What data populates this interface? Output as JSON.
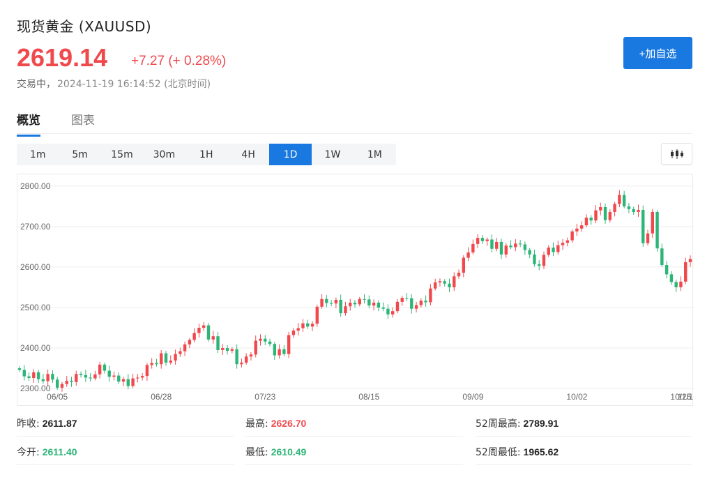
{
  "header": {
    "title": "现货黄金 (XAUUSD)",
    "price": "2619.14",
    "change": "+7.27 (+ 0.28%)",
    "status": "交易中，",
    "timestamp": "2024-11-19 16:14:52 (北京时间)",
    "add_button": "+加自选"
  },
  "tabs": [
    {
      "label": "概览",
      "active": true
    },
    {
      "label": "图表",
      "active": false
    }
  ],
  "periods": [
    {
      "label": "1m",
      "active": false
    },
    {
      "label": "5m",
      "active": false
    },
    {
      "label": "15m",
      "active": false
    },
    {
      "label": "30m",
      "active": false
    },
    {
      "label": "1H",
      "active": false
    },
    {
      "label": "4H",
      "active": false
    },
    {
      "label": "1D",
      "active": true
    },
    {
      "label": "1W",
      "active": false
    },
    {
      "label": "1M",
      "active": false
    }
  ],
  "chart_type_icon": "candlestick-icon",
  "colors": {
    "up": "#f0494d",
    "down": "#2db578",
    "accent": "#1a79e0"
  },
  "chart_data": {
    "type": "candlestick",
    "ylim": [
      2295,
      2810
    ],
    "y_ticks": [
      "2800.00",
      "2700.00",
      "2600.00",
      "2500.00",
      "2400.00",
      "2300.00"
    ],
    "y_tick_values": [
      2800,
      2700,
      2600,
      2500,
      2400,
      2300
    ],
    "x_ticks": [
      "06/05",
      "06/28",
      "07/23",
      "08/15",
      "09/09",
      "10/02",
      "10/25",
      "11/1"
    ],
    "x_tick_index": [
      8,
      30,
      52,
      74,
      96,
      118,
      140,
      161
    ],
    "closes": [
      2346,
      2330,
      2326,
      2340,
      2323,
      2318,
      2336,
      2322,
      2302,
      2311,
      2319,
      2316,
      2336,
      2333,
      2327,
      2325,
      2335,
      2359,
      2344,
      2329,
      2332,
      2317,
      2323,
      2306,
      2325,
      2327,
      2331,
      2358,
      2363,
      2360,
      2387,
      2364,
      2369,
      2385,
      2392,
      2409,
      2420,
      2437,
      2450,
      2456,
      2421,
      2429,
      2395,
      2400,
      2393,
      2397,
      2360,
      2364,
      2379,
      2384,
      2418,
      2423,
      2416,
      2410,
      2382,
      2397,
      2385,
      2432,
      2443,
      2449,
      2461,
      2453,
      2460,
      2502,
      2521,
      2511,
      2510,
      2519,
      2486,
      2503,
      2512,
      2508,
      2521,
      2520,
      2505,
      2512,
      2500,
      2497,
      2483,
      2491,
      2514,
      2524,
      2523,
      2497,
      2506,
      2517,
      2513,
      2547,
      2562,
      2565,
      2559,
      2550,
      2577,
      2586,
      2623,
      2636,
      2657,
      2672,
      2664,
      2668,
      2645,
      2662,
      2631,
      2653,
      2649,
      2658,
      2656,
      2642,
      2631,
      2607,
      2603,
      2630,
      2648,
      2637,
      2654,
      2660,
      2666,
      2688,
      2695,
      2703,
      2722,
      2715,
      2740,
      2748,
      2716,
      2736,
      2756,
      2778,
      2750,
      2743,
      2736,
      2741,
      2659,
      2683,
      2736,
      2646,
      2605,
      2582,
      2563,
      2550,
      2564,
      2612,
      2620
    ],
    "opens": [
      2350,
      2346,
      2330,
      2326,
      2340,
      2323,
      2318,
      2336,
      2322,
      2302,
      2311,
      2319,
      2316,
      2336,
      2333,
      2327,
      2325,
      2335,
      2359,
      2344,
      2329,
      2332,
      2317,
      2323,
      2306,
      2325,
      2327,
      2331,
      2358,
      2363,
      2360,
      2387,
      2364,
      2369,
      2385,
      2392,
      2409,
      2420,
      2437,
      2450,
      2456,
      2421,
      2429,
      2395,
      2400,
      2393,
      2397,
      2360,
      2364,
      2379,
      2384,
      2418,
      2423,
      2416,
      2410,
      2382,
      2397,
      2385,
      2432,
      2443,
      2449,
      2461,
      2453,
      2460,
      2502,
      2521,
      2511,
      2510,
      2519,
      2486,
      2503,
      2512,
      2508,
      2521,
      2520,
      2505,
      2512,
      2500,
      2497,
      2483,
      2491,
      2514,
      2524,
      2523,
      2497,
      2506,
      2517,
      2513,
      2547,
      2562,
      2565,
      2559,
      2550,
      2577,
      2586,
      2623,
      2636,
      2657,
      2672,
      2664,
      2668,
      2645,
      2662,
      2631,
      2653,
      2649,
      2658,
      2656,
      2642,
      2631,
      2607,
      2603,
      2630,
      2648,
      2637,
      2654,
      2660,
      2666,
      2688,
      2695,
      2703,
      2722,
      2715,
      2740,
      2748,
      2716,
      2736,
      2756,
      2778,
      2750,
      2743,
      2736,
      2741,
      2659,
      2683,
      2736,
      2646,
      2605,
      2582,
      2563,
      2550,
      2564,
      2612
    ]
  },
  "stats": {
    "prev_close_label": "昨收:",
    "prev_close": "2611.87",
    "high_label": "最高:",
    "high": "2626.70",
    "w52_high_label": "52周最高:",
    "w52_high": "2789.91",
    "open_label": "今开:",
    "open": "2611.40",
    "low_label": "最低:",
    "low": "2610.49",
    "w52_low_label": "52周最低:",
    "w52_low": "1965.62"
  }
}
